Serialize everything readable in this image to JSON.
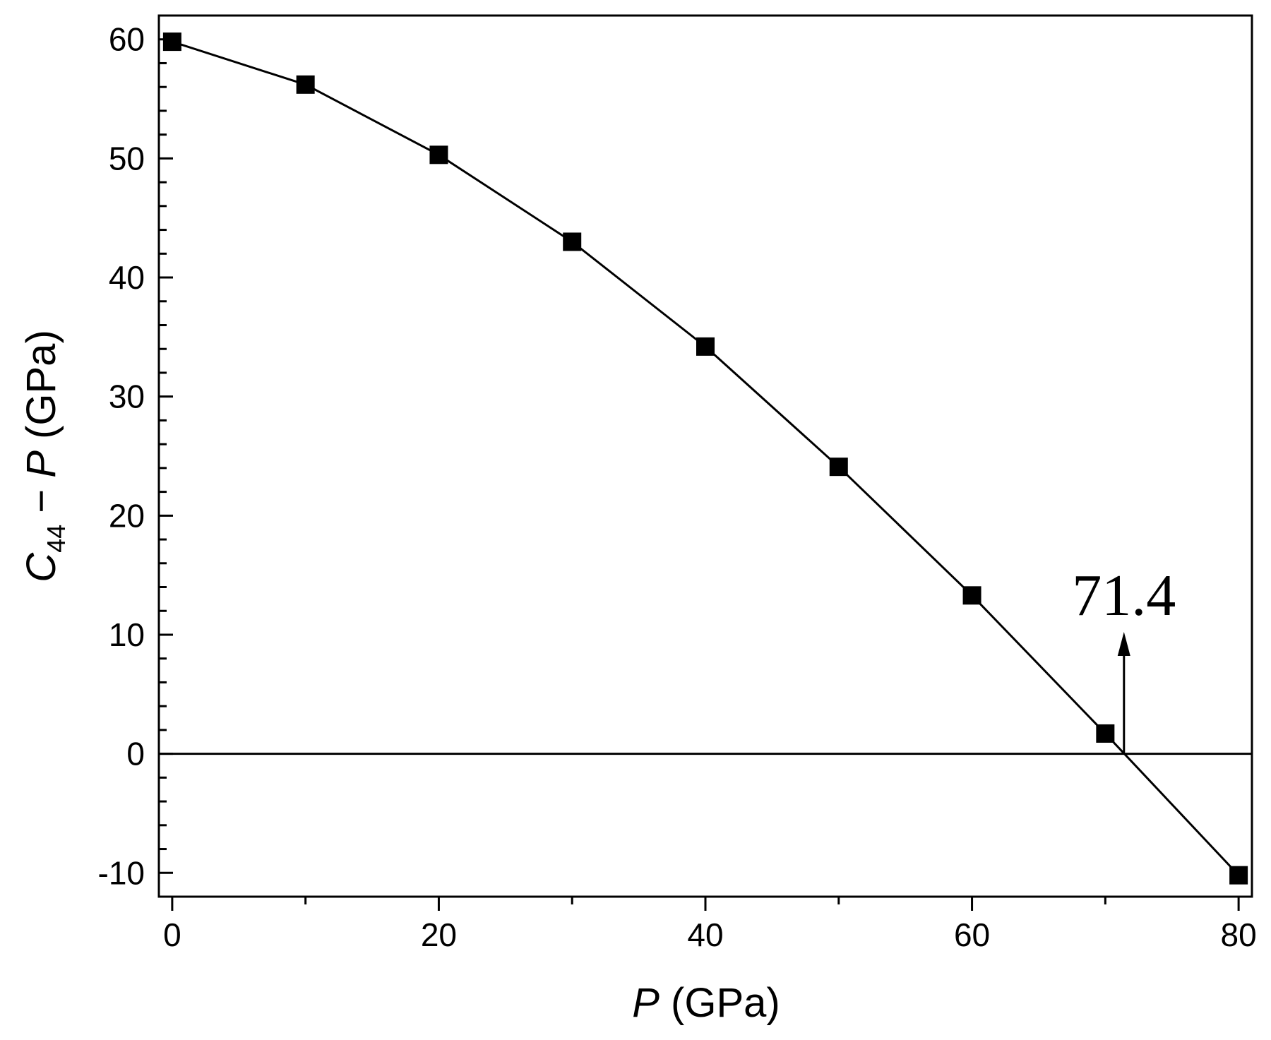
{
  "chart_data": {
    "type": "line",
    "x": [
      0,
      10,
      20,
      30,
      40,
      50,
      60,
      70,
      80
    ],
    "series": [
      {
        "values": [
          59.8,
          56.2,
          50.3,
          43.0,
          34.2,
          24.1,
          13.3,
          1.7,
          -10.2
        ]
      }
    ],
    "marker": "square",
    "xlabel": {
      "italic": "P",
      "rest": " (GPa)"
    },
    "ylabel": {
      "italic_main": "C",
      "subscript": "44",
      "middle": " − ",
      "italic_p": "P",
      "rest": " (GPa)"
    },
    "xlim": [
      -1,
      81
    ],
    "ylim": [
      -12,
      62
    ],
    "xticks_major": [
      0,
      20,
      40,
      60,
      80
    ],
    "xticks_minor": [
      10,
      30,
      50,
      70
    ],
    "yticks_major": [
      -10,
      0,
      10,
      20,
      30,
      40,
      50,
      60
    ],
    "yticks_minor_step": 2,
    "x_tick_labels": [
      "0",
      "20",
      "40",
      "60",
      "80"
    ],
    "y_tick_labels": [
      "-10",
      "0",
      "10",
      "20",
      "30",
      "40",
      "50",
      "60"
    ],
    "zero_line": true,
    "grid": false,
    "legend": "none",
    "annotation": {
      "text": "71.4",
      "x": 71.4,
      "arrow_from_y": 0,
      "arrow_to_y": 10
    },
    "colors": {
      "line": "#000000",
      "marker": "#000000",
      "axes": "#000000"
    }
  }
}
